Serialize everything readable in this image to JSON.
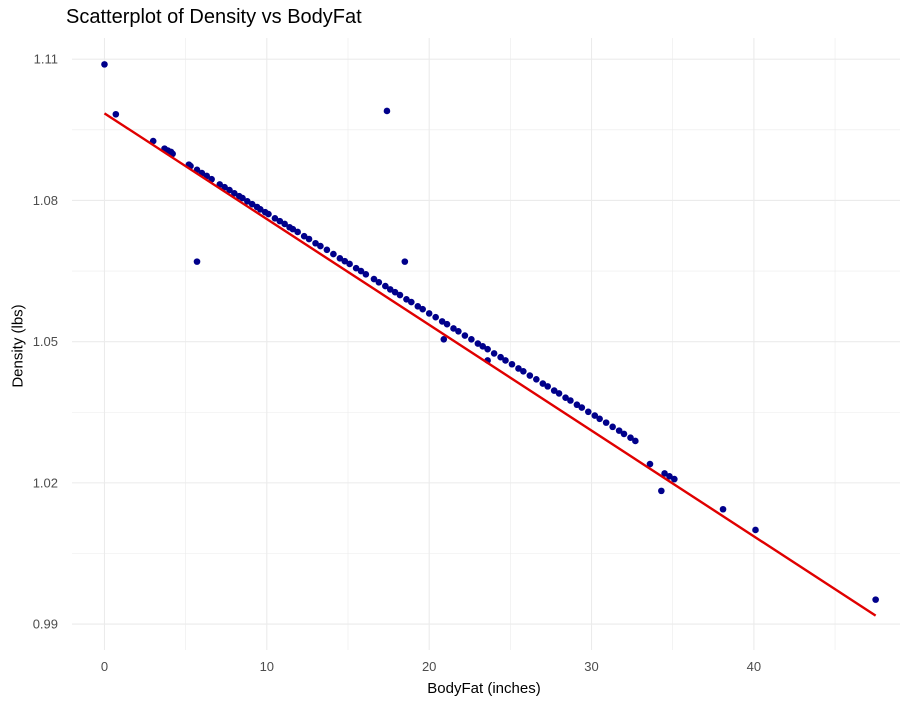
{
  "chart_data": {
    "type": "scatter",
    "title": "Scatterplot of Density vs BodyFat",
    "xlabel": "BodyFat (inches)",
    "ylabel": "Density (lbs)",
    "xlim": [
      -2,
      49
    ],
    "ylim": [
      0.9845,
      1.1145
    ],
    "x_ticks": [
      0,
      10,
      20,
      30,
      40
    ],
    "y_ticks": [
      0.99,
      1.02,
      1.05,
      1.08,
      1.11
    ],
    "grid": true,
    "colors": {
      "points": "#00008b",
      "fit_line": "#e00000",
      "grid": "#ebebeb",
      "background": "#ffffff"
    },
    "fit_line": {
      "x": [
        0,
        47.5
      ],
      "y": [
        1.0985,
        0.9918
      ]
    },
    "series": [
      {
        "type": "points",
        "x": [
          0.0,
          0.7,
          3.0,
          3.7,
          3.9,
          4.1,
          4.2,
          5.2,
          5.3,
          5.7,
          6.0,
          6.3,
          6.6,
          7.1,
          7.4,
          7.7,
          8.0,
          8.3,
          8.5,
          8.8,
          9.1,
          9.4,
          9.6,
          9.9,
          10.1,
          10.5,
          10.8,
          11.1,
          11.4,
          11.6,
          11.9,
          12.3,
          12.6,
          13.0,
          13.3,
          13.7,
          14.1,
          14.5,
          14.8,
          15.1,
          15.5,
          15.8,
          16.1,
          16.6,
          16.9,
          17.3,
          17.6,
          17.9,
          18.2,
          18.6,
          18.9,
          19.3,
          19.6,
          20.0,
          20.4,
          20.8,
          21.1,
          21.5,
          21.8,
          22.2,
          22.6,
          23.0,
          23.3,
          23.6,
          24.0,
          24.4,
          24.7,
          25.1,
          25.5,
          25.8,
          26.2,
          26.6,
          27.0,
          27.3,
          27.7,
          28.0,
          28.4,
          28.7,
          29.1,
          29.4,
          29.8,
          30.2,
          30.5,
          30.9,
          31.3,
          31.7,
          32.0,
          32.4,
          32.7,
          33.6,
          34.5,
          34.8,
          35.1,
          38.1,
          40.1,
          47.5,
          17.4,
          5.7,
          18.5,
          34.3,
          20.9,
          23.6
        ],
        "y": [
          1.1089,
          1.0983,
          1.0926,
          1.091,
          1.0906,
          1.0903,
          1.0899,
          1.0876,
          1.0873,
          1.0865,
          1.0858,
          1.0852,
          1.0845,
          1.0834,
          1.0828,
          1.0822,
          1.0815,
          1.0809,
          1.0805,
          1.0798,
          1.0792,
          1.0786,
          1.0781,
          1.0775,
          1.0771,
          1.0762,
          1.0756,
          1.075,
          1.0743,
          1.0739,
          1.0733,
          1.0724,
          1.0718,
          1.0709,
          1.0703,
          1.0695,
          1.0686,
          1.0677,
          1.0671,
          1.0665,
          1.0656,
          1.065,
          1.0643,
          1.0633,
          1.0626,
          1.0618,
          1.0611,
          1.0605,
          1.0599,
          1.059,
          1.0584,
          1.0575,
          1.0569,
          1.056,
          1.0552,
          1.0543,
          1.0537,
          1.0528,
          1.0522,
          1.0513,
          1.0505,
          1.0496,
          1.049,
          1.0484,
          1.0475,
          1.0467,
          1.046,
          1.0452,
          1.0443,
          1.0437,
          1.0428,
          1.042,
          1.0411,
          1.0405,
          1.0396,
          1.039,
          1.0381,
          1.0375,
          1.0366,
          1.036,
          1.0351,
          1.0343,
          1.0336,
          1.0328,
          1.0319,
          1.0311,
          1.0304,
          1.0296,
          1.0289,
          1.024,
          1.022,
          1.0214,
          1.0208,
          1.0144,
          1.01,
          0.9952,
          1.099,
          1.067,
          1.067,
          1.0183,
          1.0505,
          1.046
        ]
      }
    ]
  }
}
